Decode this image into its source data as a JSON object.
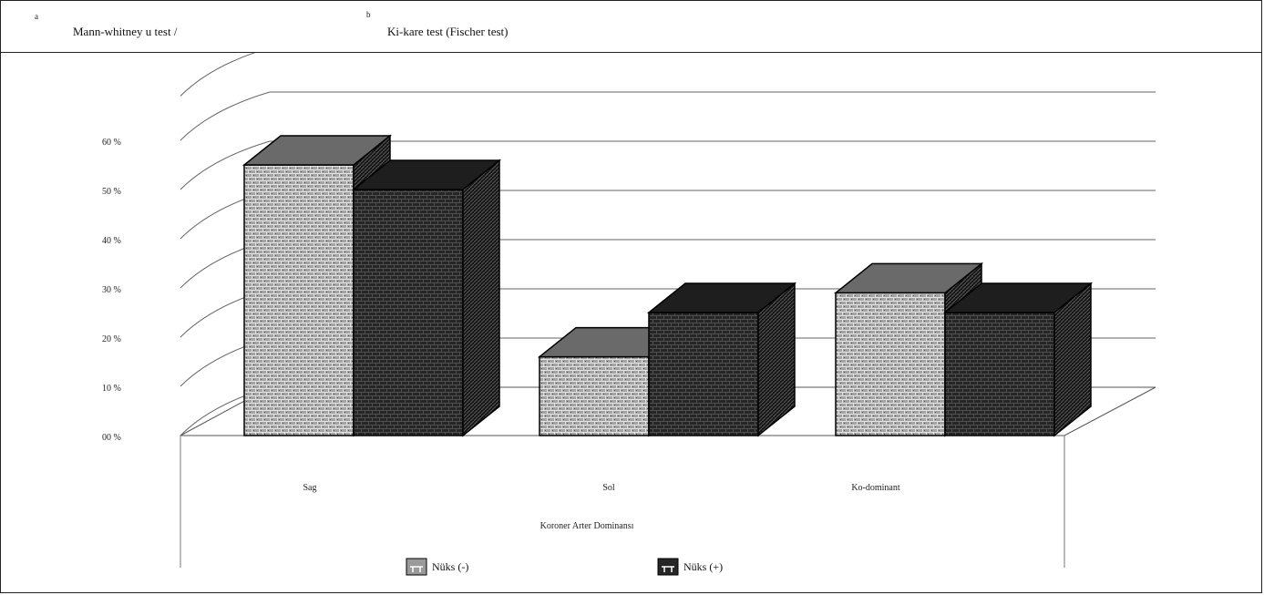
{
  "header": {
    "left_marker": "a",
    "left_text": "Mann-whitney u test /",
    "right_marker": "b",
    "right_text": "Ki-kare test (Fischer test)"
  },
  "chart_data": {
    "type": "bar",
    "categories": [
      "Sag",
      "Sol",
      "Ko-dominant"
    ],
    "series": [
      {
        "name": "Nüks (-)",
        "values": [
          55,
          16,
          29
        ],
        "color": "#9a9a9a"
      },
      {
        "name": "Nüks (+)",
        "values": [
          50,
          25,
          25
        ],
        "color": "#262626"
      }
    ],
    "y_tick_labels": [
      "00 %",
      "10 %",
      "20 %",
      "30 %",
      "40 %",
      "50 %",
      "60 %"
    ],
    "ylim": [
      0,
      60
    ],
    "xlabel": "Koroner Arter Dominansı",
    "ylabel": "",
    "title": "",
    "grid": true,
    "legend_position": "bottom",
    "style": "3d"
  }
}
